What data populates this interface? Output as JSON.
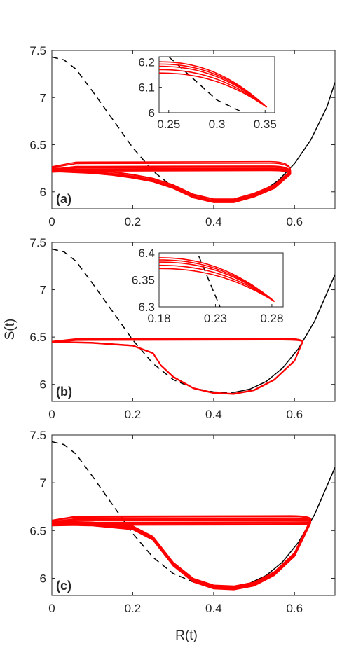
{
  "figure": {
    "ylabel": "S(t)",
    "xlabel": "R(t)"
  },
  "colors": {
    "trajectory": "#ff0000",
    "nullcline": "#000000",
    "axes": "#262626"
  },
  "chart_data": [
    {
      "type": "line",
      "panel_label": "(a)",
      "xlim": [
        0,
        0.7
      ],
      "ylim": [
        5.82,
        7.5
      ],
      "x_ticks": [
        "0",
        "0.2",
        "0.4",
        "0.6"
      ],
      "y_ticks": [
        "6",
        "6.5",
        "7",
        "7.5"
      ],
      "series": [
        {
          "style": "dashed",
          "color": "#000000",
          "x": [
            0,
            0.03,
            0.06,
            0.1,
            0.15,
            0.2,
            0.25,
            0.3,
            0.35,
            0.4,
            0.44
          ],
          "y": [
            7.43,
            7.4,
            7.3,
            7.07,
            6.77,
            6.47,
            6.22,
            6.05,
            5.96,
            5.92,
            5.915
          ]
        },
        {
          "style": "solid",
          "color": "#000000",
          "x": [
            0.44,
            0.48,
            0.52,
            0.56,
            0.6,
            0.64,
            0.68,
            0.7
          ],
          "y": [
            5.915,
            5.94,
            6.0,
            6.12,
            6.3,
            6.55,
            6.9,
            7.16
          ]
        },
        {
          "style": "loops",
          "color": "#ff0000",
          "x": [
            0,
            0.05,
            0.1,
            0.15,
            0.2,
            0.25,
            0.3,
            0.35,
            0.4,
            0.45,
            0.5,
            0.55,
            0.59
          ],
          "y": [
            6.23,
            6.22,
            6.21,
            6.19,
            6.16,
            6.12,
            6.05,
            5.95,
            5.9,
            5.9,
            5.96,
            6.05,
            6.2
          ]
        }
      ],
      "inset": {
        "xlim": [
          0.24,
          0.36
        ],
        "ylim": [
          6.0,
          6.22
        ],
        "x_ticks": [
          "0.25",
          "0.3",
          "0.35"
        ],
        "y_ticks": [
          "6",
          "6.1",
          "6.2"
        ]
      }
    },
    {
      "type": "line",
      "panel_label": "(b)",
      "xlim": [
        0,
        0.7
      ],
      "ylim": [
        5.82,
        7.5
      ],
      "x_ticks": [
        "0",
        "0.2",
        "0.4",
        "0.6"
      ],
      "y_ticks": [
        "6",
        "6.5",
        "7",
        "7.5"
      ],
      "series": [
        {
          "style": "dashed",
          "color": "#000000",
          "x": [
            0,
            0.03,
            0.06,
            0.1,
            0.15,
            0.2,
            0.25,
            0.3,
            0.35,
            0.4,
            0.45
          ],
          "y": [
            7.43,
            7.4,
            7.3,
            7.07,
            6.77,
            6.47,
            6.22,
            6.05,
            5.96,
            5.92,
            5.915
          ]
        },
        {
          "style": "solid",
          "color": "#000000",
          "x": [
            0.45,
            0.49,
            0.53,
            0.57,
            0.61,
            0.65,
            0.7
          ],
          "y": [
            5.915,
            5.95,
            6.03,
            6.17,
            6.38,
            6.67,
            7.16
          ]
        },
        {
          "style": "loops",
          "color": "#ff0000",
          "x": [
            0,
            0.1,
            0.2,
            0.25,
            0.27,
            0.3,
            0.35,
            0.4,
            0.45,
            0.5,
            0.55,
            0.6,
            0.62
          ],
          "y": [
            6.45,
            6.44,
            6.41,
            6.33,
            6.2,
            6.08,
            5.96,
            5.91,
            5.9,
            5.94,
            6.05,
            6.25,
            6.45
          ]
        }
      ],
      "inset": {
        "xlim": [
          0.18,
          0.29
        ],
        "ylim": [
          6.3,
          6.4
        ],
        "x_ticks": [
          "0.18",
          "0.23",
          "0.28"
        ],
        "y_ticks": [
          "6.3",
          "6.35",
          "6.4"
        ]
      }
    },
    {
      "type": "line",
      "panel_label": "(c)",
      "xlim": [
        0,
        0.7
      ],
      "ylim": [
        5.82,
        7.5
      ],
      "x_ticks": [
        "0",
        "0.2",
        "0.4",
        "0.6"
      ],
      "y_ticks": [
        "6",
        "6.5",
        "7",
        "7.5"
      ],
      "series": [
        {
          "style": "dashed",
          "color": "#000000",
          "x": [
            0,
            0.03,
            0.06,
            0.1,
            0.15,
            0.2,
            0.25,
            0.3,
            0.35,
            0.4,
            0.45
          ],
          "y": [
            7.43,
            7.4,
            7.3,
            7.07,
            6.77,
            6.47,
            6.22,
            6.05,
            5.96,
            5.92,
            5.915
          ]
        },
        {
          "style": "solid",
          "color": "#000000",
          "x": [
            0.45,
            0.49,
            0.53,
            0.57,
            0.61,
            0.65,
            0.7
          ],
          "y": [
            5.915,
            5.95,
            6.03,
            6.17,
            6.38,
            6.67,
            7.16
          ]
        },
        {
          "style": "loops",
          "color": "#ff0000",
          "x": [
            0,
            0.1,
            0.2,
            0.25,
            0.3,
            0.35,
            0.4,
            0.45,
            0.5,
            0.55,
            0.6,
            0.64
          ],
          "y": [
            6.58,
            6.57,
            6.53,
            6.42,
            6.15,
            5.98,
            5.91,
            5.9,
            5.94,
            6.05,
            6.25,
            6.6
          ]
        }
      ]
    }
  ]
}
